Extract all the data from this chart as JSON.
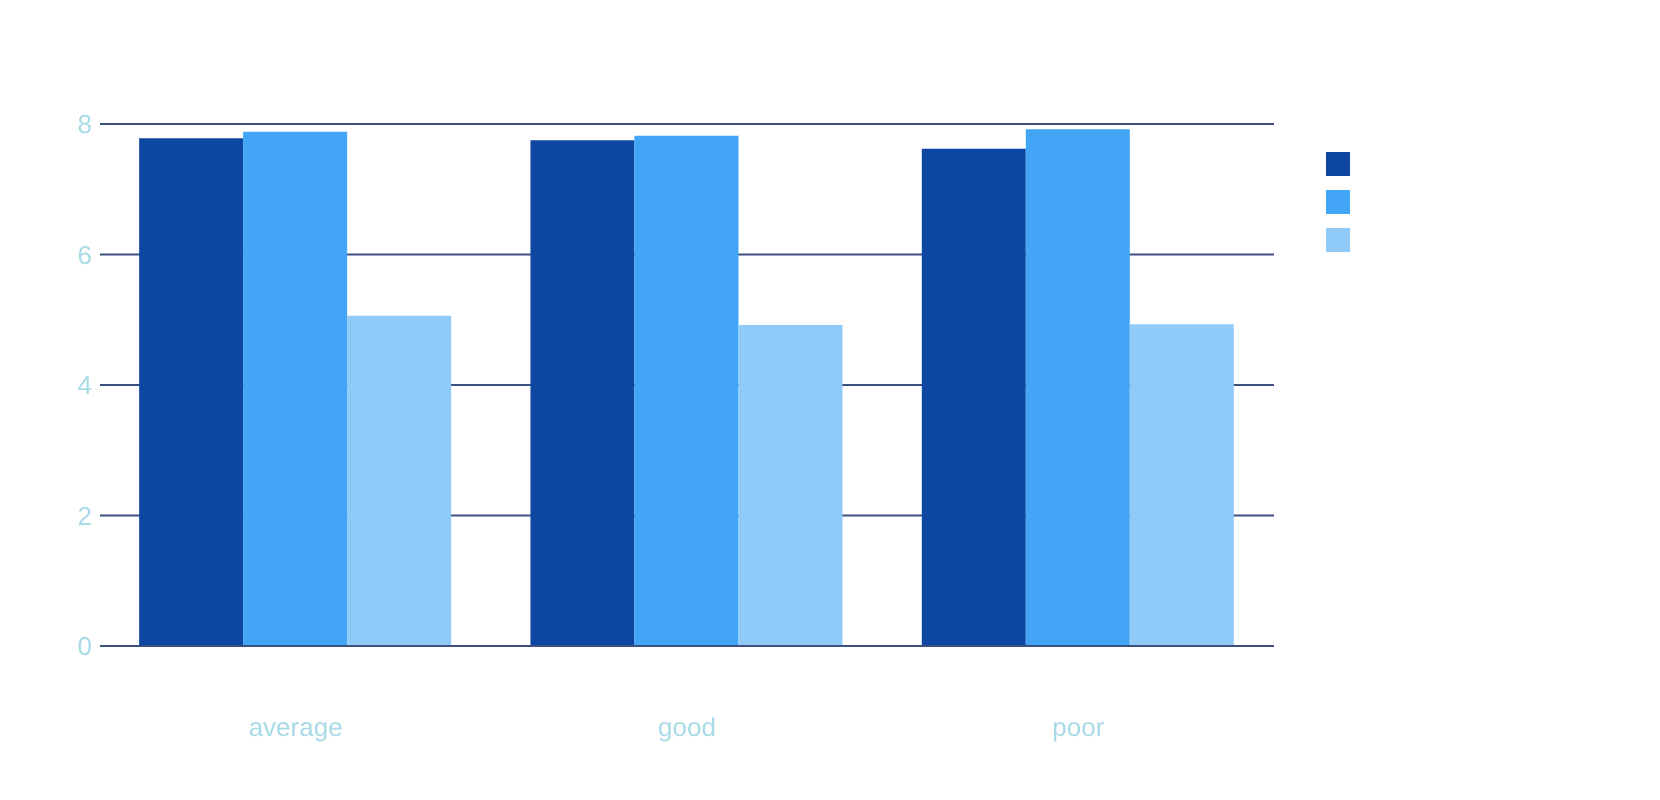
{
  "chart_data": {
    "type": "bar",
    "categories": [
      "average",
      "good",
      "poor"
    ],
    "series": [
      {
        "color": "#0d47a1",
        "values": [
          7.78,
          7.75,
          7.62
        ]
      },
      {
        "color": "#42a5f5",
        "values": [
          7.88,
          7.82,
          7.92
        ]
      },
      {
        "color": "#90caf9",
        "values": [
          5.06,
          4.92,
          4.93
        ]
      }
    ],
    "ylim": [
      0,
      8
    ],
    "yticks": [
      0,
      2,
      4,
      6,
      8
    ],
    "grid": "y"
  }
}
